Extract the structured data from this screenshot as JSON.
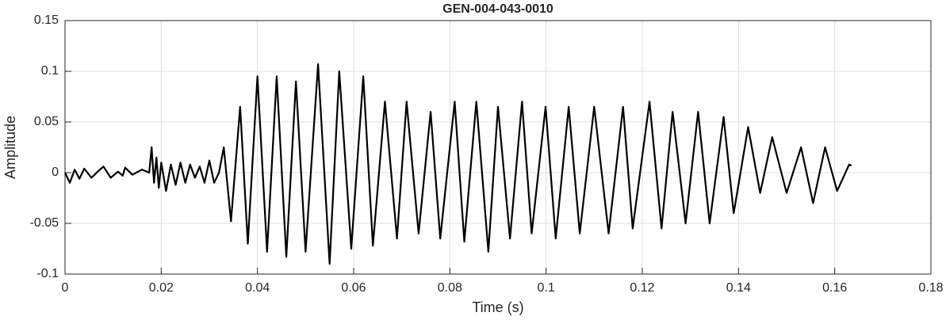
{
  "chart_data": {
    "type": "line",
    "title": "GEN-004-043-0010",
    "x_label": "Time (s)",
    "y_label": "Amplitude",
    "x": [
      0,
      0.001,
      0.002,
      0.003,
      0.004,
      0.0055,
      0.007,
      0.008,
      0.0095,
      0.011,
      0.012,
      0.0125,
      0.014,
      0.016,
      0.0175,
      0.018,
      0.0185,
      0.019,
      0.0195,
      0.02,
      0.021,
      0.022,
      0.023,
      0.024,
      0.025,
      0.026,
      0.027,
      0.028,
      0.029,
      0.03,
      0.031,
      0.032,
      0.033,
      0.0345,
      0.0364,
      0.038,
      0.04,
      0.042,
      0.044,
      0.046,
      0.048,
      0.05,
      0.0526,
      0.055,
      0.057,
      0.0595,
      0.062,
      0.064,
      0.0665,
      0.069,
      0.071,
      0.0735,
      0.076,
      0.078,
      0.081,
      0.083,
      0.0855,
      0.088,
      0.09,
      0.0925,
      0.095,
      0.097,
      0.0999,
      0.102,
      0.1047,
      0.107,
      0.11,
      0.113,
      0.116,
      0.118,
      0.1215,
      0.124,
      0.1263,
      0.129,
      0.1316,
      0.134,
      0.1369,
      0.139,
      0.142,
      0.1445,
      0.147,
      0.15,
      0.153,
      0.1555,
      0.158,
      0.1605,
      0.163,
      0.1635
    ],
    "series": [
      {
        "name": "Amplitude",
        "color": "#000000",
        "values": [
          0,
          -0.01,
          0.003,
          -0.006,
          0.004,
          -0.005,
          0.002,
          0.006,
          -0.005,
          0.001,
          -0.003,
          0.005,
          -0.002,
          0.003,
          0.0,
          0.025,
          -0.01,
          0.015,
          -0.015,
          0.01,
          -0.018,
          0.008,
          -0.012,
          0.01,
          -0.01,
          0.008,
          -0.005,
          0.006,
          -0.01,
          0.012,
          -0.01,
          0.0,
          0.025,
          -0.048,
          0.065,
          -0.07,
          0.095,
          -0.078,
          0.095,
          -0.083,
          0.09,
          -0.078,
          0.107,
          -0.09,
          0.1,
          -0.075,
          0.095,
          -0.072,
          0.07,
          -0.065,
          0.07,
          -0.06,
          0.06,
          -0.065,
          0.07,
          -0.068,
          0.07,
          -0.078,
          0.065,
          -0.065,
          0.07,
          -0.06,
          0.065,
          -0.065,
          0.065,
          -0.06,
          0.065,
          -0.06,
          0.065,
          -0.055,
          0.07,
          -0.055,
          0.06,
          -0.05,
          0.06,
          -0.05,
          0.055,
          -0.04,
          0.045,
          -0.02,
          0.035,
          -0.02,
          0.025,
          -0.03,
          0.025,
          -0.018,
          0.008,
          0.007
        ]
      }
    ],
    "xlim": [
      0,
      0.18
    ],
    "xticks": [
      0,
      0.02,
      0.04,
      0.06,
      0.08,
      0.1,
      0.12,
      0.14,
      0.16,
      0.18
    ],
    "ylim": [
      -0.1,
      0.15
    ],
    "yticks": [
      -0.1,
      -0.05,
      0,
      0.05,
      0.1,
      0.15
    ],
    "grid": true
  }
}
